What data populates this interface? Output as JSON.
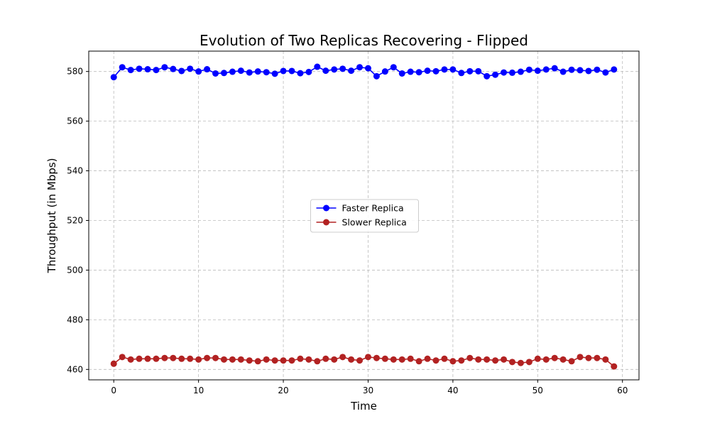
{
  "chart_data": {
    "type": "line",
    "title": "Evolution of Two Replicas Recovering - Flipped",
    "xlabel": "Time",
    "ylabel": "Throughput (in Mbps)",
    "xlim": [
      -2.95,
      61.95
    ],
    "ylim": [
      455.8,
      588.2
    ],
    "xticks": [
      0,
      10,
      20,
      30,
      40,
      50,
      60
    ],
    "yticks": [
      460,
      480,
      500,
      520,
      540,
      560,
      580
    ],
    "grid": true,
    "legend_position": "center",
    "x": [
      0,
      1,
      2,
      3,
      4,
      5,
      6,
      7,
      8,
      9,
      10,
      11,
      12,
      13,
      14,
      15,
      16,
      17,
      18,
      19,
      20,
      21,
      22,
      23,
      24,
      25,
      26,
      27,
      28,
      29,
      30,
      31,
      32,
      33,
      34,
      35,
      36,
      37,
      38,
      39,
      40,
      41,
      42,
      43,
      44,
      45,
      46,
      47,
      48,
      49,
      50,
      51,
      52,
      53,
      54,
      55,
      56,
      57,
      58,
      59
    ],
    "series": [
      {
        "name": "Faster Replica",
        "color": "#0000ff",
        "values": [
          577.7,
          581.7,
          580.6,
          581.1,
          580.9,
          580.6,
          581.7,
          581.0,
          580.2,
          581.1,
          580.0,
          580.9,
          579.2,
          579.4,
          579.9,
          580.3,
          579.6,
          580.0,
          579.7,
          579.1,
          580.2,
          580.2,
          579.3,
          579.8,
          581.9,
          580.3,
          580.8,
          581.1,
          580.3,
          581.7,
          581.3,
          578.1,
          580.0,
          581.7,
          579.2,
          579.9,
          579.7,
          580.3,
          580.1,
          580.8,
          580.8,
          579.4,
          580.1,
          580.1,
          578.1,
          578.7,
          579.6,
          579.5,
          579.9,
          580.7,
          580.3,
          580.8,
          581.3,
          579.9,
          580.7,
          580.5,
          580.2,
          580.7,
          579.6,
          580.8
        ]
      },
      {
        "name": "Slower Replica",
        "color": "#b22222",
        "values": [
          462.3,
          465.0,
          464.0,
          464.3,
          464.3,
          464.3,
          464.6,
          464.6,
          464.3,
          464.3,
          464.0,
          464.6,
          464.6,
          464.0,
          464.0,
          464.0,
          463.6,
          463.3,
          464.0,
          463.6,
          463.6,
          463.6,
          464.3,
          464.0,
          463.3,
          464.3,
          464.0,
          465.0,
          464.0,
          463.6,
          465.0,
          464.6,
          464.3,
          464.0,
          464.0,
          464.3,
          463.3,
          464.3,
          463.6,
          464.3,
          463.3,
          463.6,
          464.6,
          464.0,
          464.0,
          463.6,
          464.0,
          463.0,
          462.6,
          463.0,
          464.3,
          464.0,
          464.6,
          464.0,
          463.3,
          465.0,
          464.6,
          464.6,
          464.0,
          461.2
        ]
      }
    ]
  }
}
